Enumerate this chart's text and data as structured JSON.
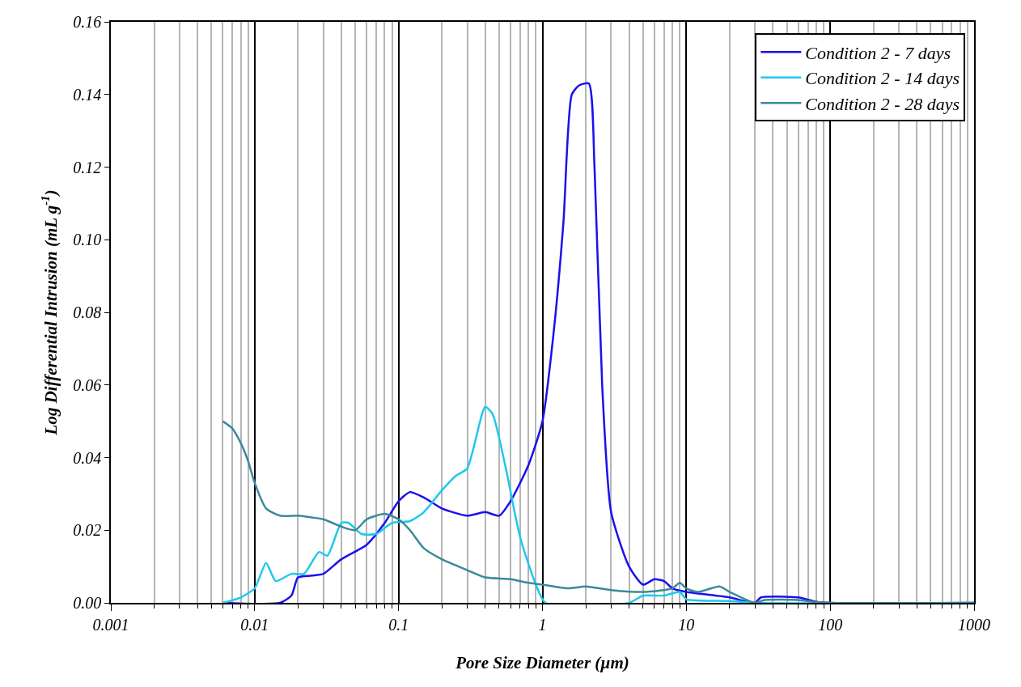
{
  "chart_data": {
    "type": "line",
    "xlabel": "Pore Size Diameter (µm)",
    "ylabel": "Log Differential Intrusion (mL g$^{-1}$)",
    "log": "x",
    "grid": "x",
    "legend": "top right",
    "line_style": "solid",
    "marker": "none",
    "xlim": [
      0.001,
      1000
    ],
    "xticks": [
      0.001,
      0.01,
      0.1,
      1,
      10,
      100,
      1000
    ],
    "ylim": [
      0,
      0.16
    ],
    "yticks": [
      {
        "value": 0,
        "label": "0.00"
      },
      {
        "value": 0.02,
        "label": "0.02"
      },
      {
        "value": 0.04,
        "label": "0.04"
      },
      {
        "value": 0.06,
        "label": "0.06"
      },
      {
        "value": 0.08,
        "label": "0.08"
      },
      {
        "value": 0.1,
        "label": "0.10"
      },
      {
        "value": 0.12,
        "label": "0.12"
      },
      {
        "value": 0.14,
        "label": "0.14"
      },
      {
        "value": 0.16,
        "label": "0.16"
      }
    ],
    "series": [
      {
        "name": "Condition 2 - 7 days",
        "color": "#1a10ee",
        "x": [
          0.006,
          0.015,
          0.018,
          0.02,
          0.025,
          0.03,
          0.04,
          0.06,
          0.08,
          0.1,
          0.12,
          0.15,
          0.2,
          0.3,
          0.4,
          0.5,
          0.6,
          0.8,
          1,
          1.2,
          1.4,
          1.6,
          1.8,
          2.1,
          2.3,
          2.6,
          3,
          4,
          5,
          6,
          7,
          8,
          10,
          20,
          30,
          33,
          60,
          80,
          100,
          1000
        ],
        "values": [
          0,
          0,
          0.002,
          0.007,
          0.0075,
          0.008,
          0.012,
          0.016,
          0.022,
          0.028,
          0.0305,
          0.029,
          0.026,
          0.024,
          0.025,
          0.024,
          0.028,
          0.038,
          0.05,
          0.075,
          0.105,
          0.14,
          0.1425,
          0.143,
          0.12,
          0.06,
          0.025,
          0.01,
          0.005,
          0.0065,
          0.006,
          0.004,
          0.003,
          0.0015,
          0,
          0.0015,
          0.0015,
          0.0003,
          0,
          0
        ]
      },
      {
        "name": "Condition 2 - 14 days",
        "color": "#1ec8ee",
        "x": [
          0.006,
          0.008,
          0.01,
          0.012,
          0.014,
          0.018,
          0.022,
          0.028,
          0.032,
          0.04,
          0.045,
          0.055,
          0.07,
          0.09,
          0.12,
          0.15,
          0.2,
          0.25,
          0.3,
          0.4,
          0.45,
          0.55,
          0.7,
          0.9,
          1.05,
          4,
          5,
          7,
          9,
          10,
          20,
          30,
          1000
        ],
        "values": [
          0,
          0.0015,
          0.004,
          0.011,
          0.006,
          0.008,
          0.008,
          0.014,
          0.013,
          0.022,
          0.022,
          0.019,
          0.019,
          0.022,
          0.0225,
          0.025,
          0.031,
          0.035,
          0.037,
          0.054,
          0.052,
          0.038,
          0.018,
          0.005,
          0,
          0,
          0.002,
          0.002,
          0.003,
          0.001,
          0.0005,
          0,
          0
        ]
      },
      {
        "name": "Condition 2 - 28 days",
        "color": "#3a8a9a",
        "x": [
          0.006,
          0.007,
          0.008,
          0.009,
          0.01,
          0.012,
          0.015,
          0.02,
          0.025,
          0.03,
          0.04,
          0.05,
          0.06,
          0.08,
          0.1,
          0.12,
          0.15,
          0.2,
          0.3,
          0.4,
          0.6,
          0.8,
          1,
          1.5,
          2,
          3,
          5,
          8,
          9,
          10,
          12,
          17,
          20,
          30,
          35,
          60,
          80,
          100,
          1000
        ],
        "values": [
          0.05,
          0.048,
          0.044,
          0.039,
          0.033,
          0.026,
          0.024,
          0.024,
          0.0235,
          0.023,
          0.021,
          0.02,
          0.023,
          0.0245,
          0.023,
          0.02,
          0.015,
          0.012,
          0.009,
          0.007,
          0.0065,
          0.0055,
          0.005,
          0.004,
          0.0045,
          0.0035,
          0.003,
          0.004,
          0.0055,
          0.004,
          0.003,
          0.0045,
          0.003,
          0,
          0.0008,
          0.0008,
          0.0002,
          0,
          0
        ]
      }
    ]
  }
}
